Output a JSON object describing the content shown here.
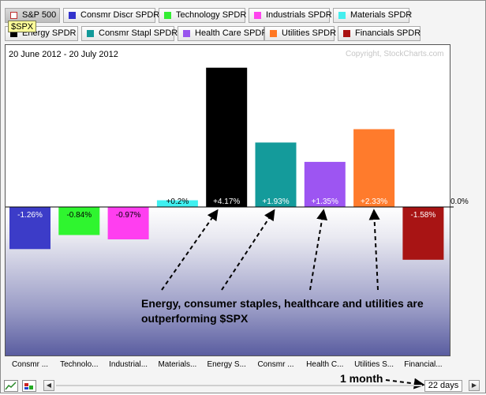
{
  "legend": [
    {
      "label": "S&P 500",
      "color": "#ffffff",
      "active": true
    },
    {
      "label": "Consmr Discr SPDR",
      "color": "#3333cc"
    },
    {
      "label": "Technology SPDR",
      "color": "#33ee33"
    },
    {
      "label": "Industrials SPDR",
      "color": "#ff44ee"
    },
    {
      "label": "Materials SPDR",
      "color": "#44eeee"
    },
    {
      "label": "Energy SPDR",
      "color": "#000000"
    },
    {
      "label": "Consmr Stapl SPDR",
      "color": "#119999"
    },
    {
      "label": "Health Care SPDR",
      "color": "#9955ee"
    },
    {
      "label": "Utilities SPDR",
      "color": "#ff7722"
    },
    {
      "label": "Financials SPDR",
      "color": "#aa1111"
    }
  ],
  "tooltip": "$SPX",
  "date_range": "20 June 2012 - 20 July 2012",
  "copyright": "Copyright, StockCharts.com",
  "annotation": "Energy, consumer staples, healthcare and utilities are outperforming $SPX",
  "month_label": "1 month",
  "days": "22 days",
  "chart_data": {
    "type": "bar",
    "baseline_label": "0.0%",
    "ylim": [
      -3.1,
      4.85
    ],
    "categories": [
      "Consmr ...",
      "Technolo...",
      "Industrial...",
      "Materials...",
      "Energy S...",
      "Consmr ...",
      "Health C...",
      "Utilities S...",
      "Financial..."
    ],
    "values": [
      -1.26,
      -0.84,
      -0.97,
      0.2,
      4.17,
      1.93,
      1.35,
      2.33,
      -1.58
    ],
    "value_labels": [
      "-1.26%",
      "-0.84%",
      "-0.97%",
      "+0.2%",
      "+4.17%",
      "+1.93%",
      "+1.35%",
      "+2.33%",
      "-1.58%"
    ],
    "colors": [
      "#3c3cc8",
      "#2ff52f",
      "#ff3ef0",
      "#3ff0f0",
      "#000000",
      "#149b9b",
      "#9d55f2",
      "#ff7b2c",
      "#a81414"
    ],
    "label_colors": [
      "#ffffff",
      "#000000",
      "#000000",
      "#000000",
      "#ffffff",
      "#ffffff",
      "#ffffff",
      "#ffffff",
      "#ffffff"
    ]
  }
}
